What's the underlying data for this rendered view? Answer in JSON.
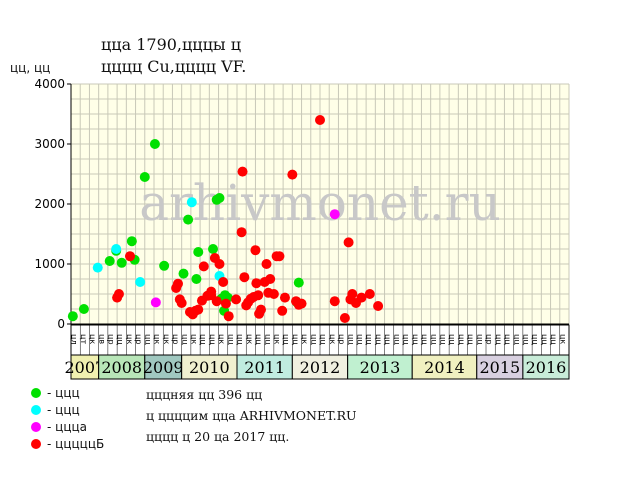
{
  "header": {
    "title_line1": "ццa 1790,цццы ц",
    "title_line2": "цццц Cu,цццц VF."
  },
  "notes": [
    "цццняя цц 396 цц",
    "ц ццццим цца ARHIVMONET.RU",
    "цццц ц 20 цa 2017 цц."
  ],
  "legend": [
    {
      "label": "- ццц",
      "color": "#00e000"
    },
    {
      "label": "- ццц",
      "color": "#00ffff"
    },
    {
      "label": "- цццa",
      "color": "#ff00ff"
    },
    {
      "label": "- цццццБ",
      "color": "#ff0000"
    }
  ],
  "chart_data": {
    "type": "scatter",
    "title": "ццa 1790,цццы ц цццц Cu,цццц VF.",
    "ylabel": "цц, цц",
    "ylim": [
      0,
      4000
    ],
    "yticks": [
      0,
      1000,
      2000,
      3000,
      4000
    ],
    "watermark": "arhivmonet.ru",
    "grid": true,
    "x_slot_labels": [
      "цл",
      "цт",
      "цк",
      "цв",
      "цр",
      "цц",
      "цк",
      "цр",
      "цц",
      "цк",
      "цк",
      "цр",
      "цц",
      "цк",
      "цц",
      "цц",
      "цк",
      "цц",
      "цц",
      "цк",
      "цц",
      "цц",
      "цк",
      "цц",
      "цц",
      "цк",
      "цц",
      "цц",
      "цк",
      "цр",
      "цц",
      "цц",
      "цц",
      "цц",
      "цц",
      "цц",
      "цц",
      "цц",
      "цц",
      "цц",
      "цц",
      "цц",
      "цц",
      "цц",
      "цц",
      "цр",
      "цц",
      "цц",
      "цц",
      "цц",
      "цц",
      "цц",
      "цц",
      "цк",
      "цц",
      "цц",
      "цк"
    ],
    "years": [
      {
        "label": "2007",
        "start": 0,
        "end": 3,
        "color": "#f0f0b0"
      },
      {
        "label": "2008",
        "start": 3,
        "end": 8,
        "color": "#b8e6b8"
      },
      {
        "label": "2009",
        "start": 8,
        "end": 12,
        "color": "#a0c8c0"
      },
      {
        "label": "2010",
        "start": 12,
        "end": 18,
        "color": "#f0f0d0"
      },
      {
        "label": "2011",
        "start": 18,
        "end": 24,
        "color": "#c0ece0"
      },
      {
        "label": "2012",
        "start": 24,
        "end": 30,
        "color": "#f0f0e0"
      },
      {
        "label": "2013",
        "start": 30,
        "end": 37,
        "color": "#c0f0d0"
      },
      {
        "label": "2014",
        "start": 37,
        "end": 44,
        "color": "#f0f0c0"
      },
      {
        "label": "2015",
        "start": 44,
        "end": 49,
        "color": "#d8d0e0"
      },
      {
        "label": "2016",
        "start": 49,
        "end": 54,
        "color": "#c8ecd8"
      }
    ],
    "series": [
      {
        "name": "- ццц",
        "color": "#00e000",
        "points": [
          [
            0.2,
            130
          ],
          [
            1.4,
            250
          ],
          [
            4.2,
            1050
          ],
          [
            4.9,
            1220
          ],
          [
            5.5,
            1020
          ],
          [
            6.6,
            1380
          ],
          [
            6.9,
            1070
          ],
          [
            8.0,
            2450
          ],
          [
            9.1,
            3000
          ],
          [
            10.1,
            970
          ],
          [
            12.2,
            840
          ],
          [
            12.7,
            1740
          ],
          [
            13.6,
            750
          ],
          [
            13.8,
            1200
          ],
          [
            15.4,
            1250
          ],
          [
            15.8,
            2070
          ],
          [
            16.1,
            2100
          ],
          [
            16.3,
            420
          ],
          [
            16.6,
            220
          ],
          [
            16.7,
            480
          ],
          [
            17.0,
            440
          ],
          [
            24.5,
            360
          ],
          [
            24.7,
            690
          ]
        ]
      },
      {
        "name": "- ццц",
        "color": "#00ffff",
        "points": [
          [
            2.9,
            940
          ],
          [
            4.9,
            1250
          ],
          [
            7.5,
            700
          ],
          [
            13.1,
            2030
          ],
          [
            16.1,
            800
          ]
        ]
      },
      {
        "name": "- цццa",
        "color": "#ff00ff",
        "points": [
          [
            9.2,
            360
          ],
          [
            28.6,
            1830
          ]
        ]
      },
      {
        "name": "- цццццБ",
        "color": "#ff0000",
        "points": [
          [
            5.0,
            440
          ],
          [
            5.2,
            500
          ],
          [
            6.4,
            1130
          ],
          [
            11.4,
            600
          ],
          [
            11.6,
            670
          ],
          [
            11.8,
            410
          ],
          [
            12.0,
            350
          ],
          [
            12.9,
            200
          ],
          [
            13.2,
            160
          ],
          [
            13.5,
            220
          ],
          [
            13.8,
            240
          ],
          [
            14.2,
            390
          ],
          [
            14.4,
            960
          ],
          [
            14.8,
            470
          ],
          [
            15.2,
            540
          ],
          [
            15.6,
            1100
          ],
          [
            15.8,
            380
          ],
          [
            15.2,
            480
          ],
          [
            16.1,
            1000
          ],
          [
            16.5,
            700
          ],
          [
            16.8,
            340
          ],
          [
            17.1,
            130
          ],
          [
            17.9,
            410
          ],
          [
            18.5,
            1530
          ],
          [
            18.6,
            2540
          ],
          [
            18.8,
            780
          ],
          [
            19.0,
            310
          ],
          [
            19.2,
            360
          ],
          [
            19.5,
            420
          ],
          [
            19.8,
            450
          ],
          [
            20.0,
            1230
          ],
          [
            20.1,
            680
          ],
          [
            20.3,
            480
          ],
          [
            20.4,
            170
          ],
          [
            20.6,
            240
          ],
          [
            21.0,
            700
          ],
          [
            21.2,
            1000
          ],
          [
            21.4,
            520
          ],
          [
            21.6,
            750
          ],
          [
            22.0,
            500
          ],
          [
            22.3,
            1130
          ],
          [
            22.6,
            1130
          ],
          [
            22.9,
            220
          ],
          [
            23.2,
            440
          ],
          [
            24.0,
            2490
          ],
          [
            24.4,
            380
          ],
          [
            24.7,
            320
          ],
          [
            25.0,
            340
          ],
          [
            27.0,
            3400
          ],
          [
            28.6,
            380
          ],
          [
            29.7,
            100
          ],
          [
            30.1,
            1360
          ],
          [
            30.3,
            410
          ],
          [
            30.5,
            500
          ],
          [
            30.9,
            350
          ],
          [
            31.5,
            440
          ],
          [
            32.4,
            500
          ],
          [
            33.3,
            300
          ]
        ]
      }
    ]
  }
}
